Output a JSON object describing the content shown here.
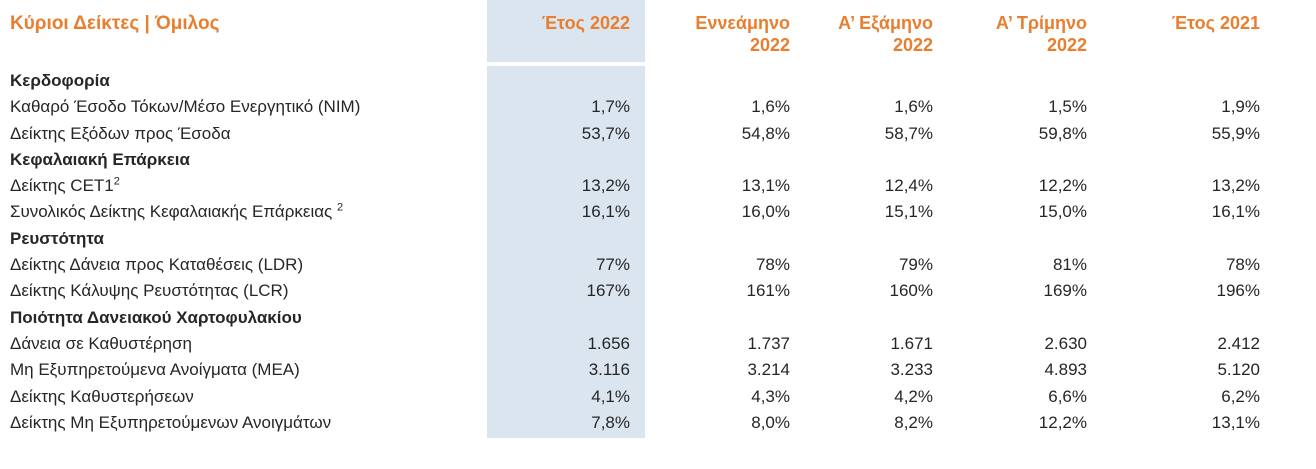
{
  "report": {
    "title": "Κύριοι Δείκτες | Όμιλος",
    "columns": [
      {
        "lines": [
          "Έτος 2022"
        ],
        "highlight": true
      },
      {
        "lines": [
          "Εννεάμηνο",
          "2022"
        ],
        "highlight": false
      },
      {
        "lines": [
          "Α’ Εξάμηνο",
          "2022"
        ],
        "highlight": false
      },
      {
        "lines": [
          "Α’ Τρίμηνο",
          "2022"
        ],
        "highlight": false
      },
      {
        "lines": [
          "Έτος 2021"
        ],
        "highlight": false
      }
    ],
    "rows": [
      {
        "type": "section",
        "label": "Κερδοφορία"
      },
      {
        "type": "data",
        "label": "Καθαρό Έσοδο Τόκων/Μέσο Ενεργητικό (NIM)",
        "values": [
          "1,7%",
          "1,6%",
          "1,6%",
          "1,5%",
          "1,9%"
        ]
      },
      {
        "type": "data",
        "label": "Δείκτης Εξόδων προς Έσοδα",
        "values": [
          "53,7%",
          "54,8%",
          "58,7%",
          "59,8%",
          "55,9%"
        ]
      },
      {
        "type": "section",
        "label": "Κεφαλαιακή Επάρκεια"
      },
      {
        "type": "data",
        "label": "Δείκτης CET1",
        "sup": "2",
        "values": [
          "13,2%",
          "13,1%",
          "12,4%",
          "12,2%",
          "13,2%"
        ]
      },
      {
        "type": "data",
        "label": "Συνολικός Δείκτης Κεφαλαιακής Επάρκειας ",
        "sup": "2",
        "values": [
          "16,1%",
          "16,0%",
          "15,1%",
          "15,0%",
          "16,1%"
        ]
      },
      {
        "type": "section",
        "label": "Ρευστότητα"
      },
      {
        "type": "data",
        "label": "Δείκτης Δάνεια προς Καταθέσεις (LDR)",
        "values": [
          "77%",
          "78%",
          "79%",
          "81%",
          "78%"
        ]
      },
      {
        "type": "data",
        "label": "Δείκτης Κάλυψης Ρευστότητας (LCR)",
        "values": [
          "167%",
          "161%",
          "160%",
          "169%",
          "196%"
        ]
      },
      {
        "type": "section",
        "label": "Ποιότητα Δανειακού Χαρτοφυλακίου"
      },
      {
        "type": "data",
        "label": "Δάνεια σε Καθυστέρηση",
        "values": [
          "1.656",
          "1.737",
          "1.671",
          "2.630",
          "2.412"
        ]
      },
      {
        "type": "data",
        "label": "Μη Εξυπηρετούμενα Ανοίγματα (ΜΕΑ)",
        "values": [
          "3.116",
          "3.214",
          "3.233",
          "4.893",
          "5.120"
        ]
      },
      {
        "type": "data",
        "label": "Δείκτης Καθυστερήσεων",
        "values": [
          "4,1%",
          "4,3%",
          "4,2%",
          "6,6%",
          "6,2%"
        ]
      },
      {
        "type": "data",
        "label": "Δείκτης Μη Εξυπηρετούμενων Ανοιγμάτων",
        "values": [
          "7,8%",
          "8,0%",
          "8,2%",
          "12,2%",
          "13,1%"
        ]
      }
    ]
  },
  "colors": {
    "accent_orange": "#e87e2e",
    "highlight_blue": "#dbe5f0",
    "text": "#262626"
  }
}
